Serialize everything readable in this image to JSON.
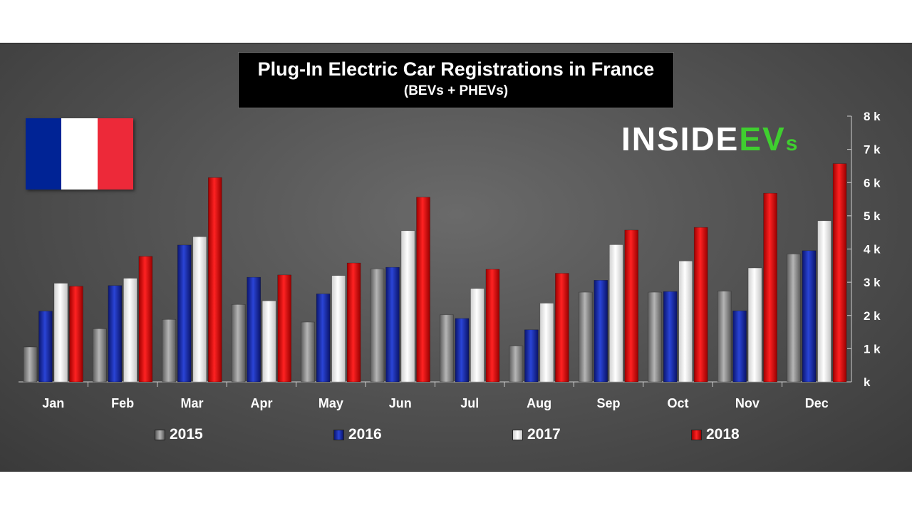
{
  "chart_data": {
    "type": "bar",
    "title": "Plug-In Electric Car Registrations in France",
    "subtitle": "(BEVs + PHEVs)",
    "categories": [
      "Jan",
      "Feb",
      "Mar",
      "Apr",
      "May",
      "Jun",
      "Jul",
      "Aug",
      "Sep",
      "Oct",
      "Nov",
      "Dec"
    ],
    "series": [
      {
        "name": "2015",
        "color": "#8c8c8c",
        "values": [
          1050,
          1600,
          1880,
          2330,
          1800,
          3400,
          2020,
          1080,
          2700,
          2700,
          2730,
          3850
        ]
      },
      {
        "name": "2016",
        "color": "#1a2fa8",
        "values": [
          2130,
          2900,
          4120,
          3150,
          2650,
          3450,
          1910,
          1570,
          3060,
          2720,
          2140,
          3950
        ]
      },
      {
        "name": "2017",
        "color": "#f2f2f2",
        "values": [
          2970,
          3120,
          4370,
          2440,
          3200,
          4550,
          2810,
          2370,
          4130,
          3640,
          3430,
          4850
        ]
      },
      {
        "name": "2018",
        "color": "#e01010",
        "values": [
          2880,
          3780,
          6150,
          3220,
          3580,
          5560,
          3390,
          3270,
          4570,
          4650,
          5680,
          6570
        ]
      }
    ],
    "yticks": [
      "k",
      "1 k",
      "2 k",
      "3 k",
      "4 k",
      "5 k",
      "6 k",
      "7 k",
      "8 k"
    ],
    "ylim": [
      0,
      8000
    ],
    "grid": false,
    "legend_position": "bottom"
  },
  "flag": {
    "colors": [
      "#002395",
      "#ffffff",
      "#ed2939"
    ]
  },
  "logo": {
    "part1": "INSIDE",
    "part2": "EV",
    "part3": "s"
  }
}
